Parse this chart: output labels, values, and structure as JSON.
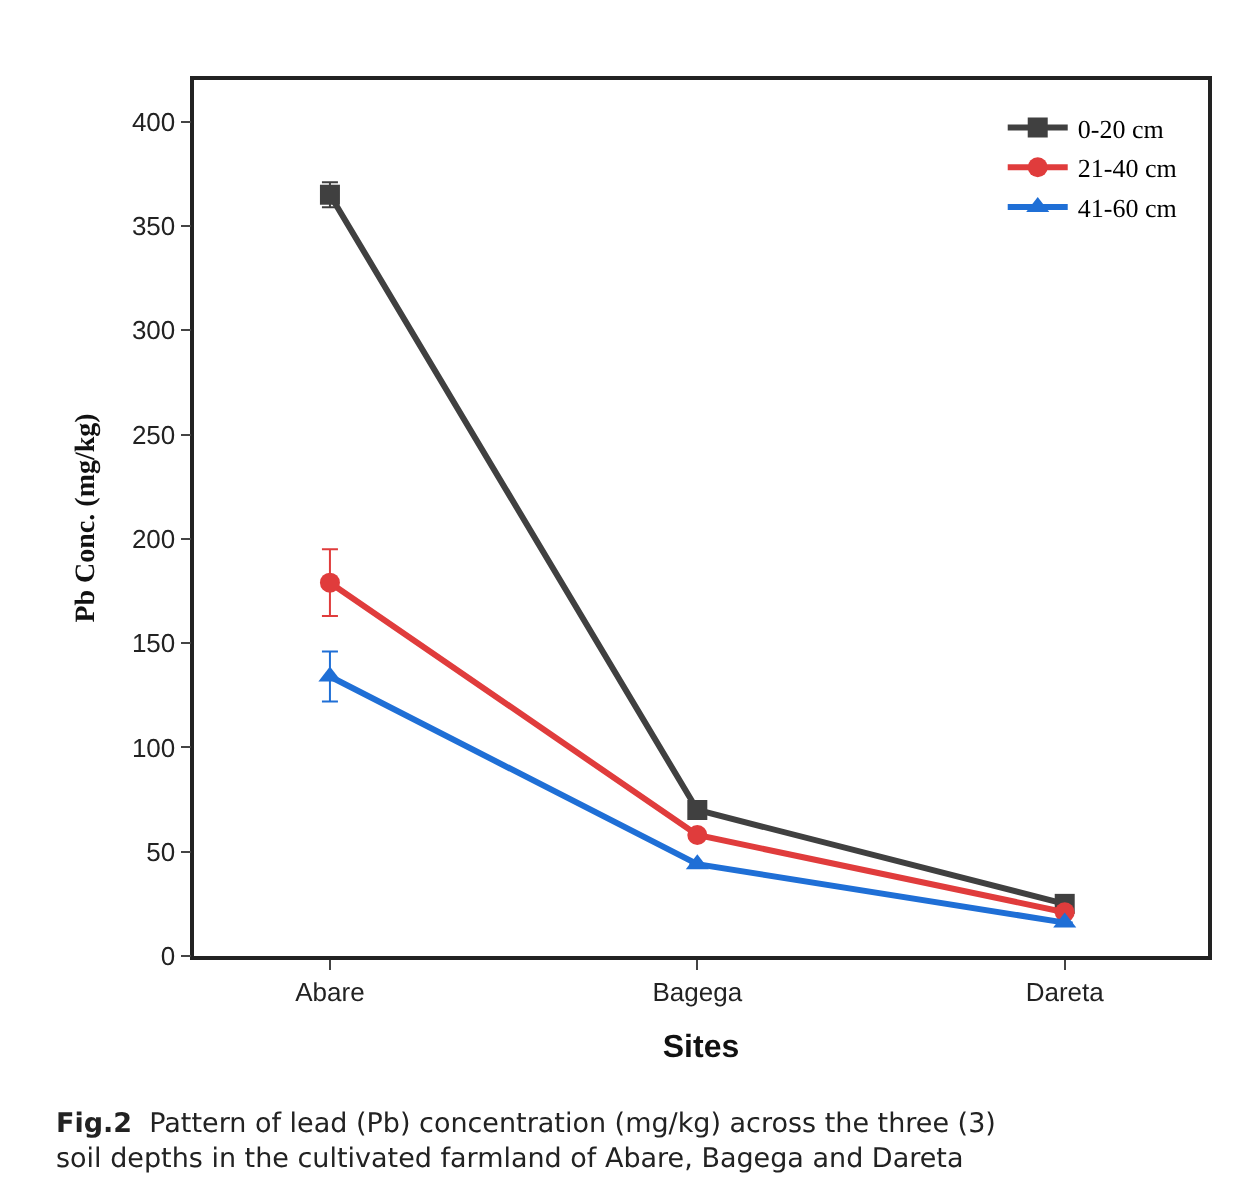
{
  "chart_data": {
    "type": "line",
    "xlabel": "Sites",
    "ylabel": "Pb Conc. (mg/kg)",
    "categories": [
      "Abare",
      "Bagega",
      "Dareta"
    ],
    "series": [
      {
        "name": "0-20 cm",
        "color": "#404040",
        "marker": "square",
        "values": [
          365,
          70,
          25
        ],
        "errors": [
          6,
          null,
          null
        ]
      },
      {
        "name": "21-40 cm",
        "color": "#e03c3c",
        "marker": "circle",
        "values": [
          179,
          58,
          21
        ],
        "errors": [
          16,
          null,
          null
        ]
      },
      {
        "name": "41-60 cm",
        "color": "#1f6fd6",
        "marker": "triangle",
        "values": [
          134,
          44,
          16
        ],
        "errors": [
          12,
          null,
          null
        ]
      }
    ],
    "ylim": [
      0,
      420
    ],
    "yticks": [
      0,
      50,
      100,
      150,
      200,
      250,
      300,
      350,
      400
    ],
    "legend": "top right",
    "line_style": "solid",
    "annotations": [
      "Fig.2  Pattern of lead (Pb) concentration (mg/kg) across the three (3)\nsoil depths in the cultivated farmland of Abare, Bagega and Dareta"
    ]
  }
}
